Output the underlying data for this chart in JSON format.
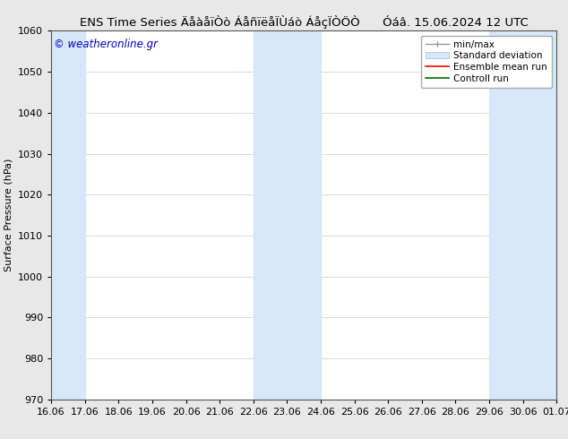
{
  "title_left": "ENS Time Series ÄåàåïÒò ÁåñïëåÏÙáò ÁåçÏÒÖÒ",
  "title_right": "Óáâ. 15.06.2024 12 UTC",
  "ylabel": "Surface Pressure (hPa)",
  "ylim": [
    970,
    1060
  ],
  "yticks": [
    970,
    980,
    990,
    1000,
    1010,
    1020,
    1030,
    1040,
    1050,
    1060
  ],
  "xtick_labels": [
    "16.06",
    "17.06",
    "18.06",
    "19.06",
    "20.06",
    "21.06",
    "22.06",
    "23.06",
    "24.06",
    "25.06",
    "26.06",
    "27.06",
    "28.06",
    "29.06",
    "30.06",
    "01.07"
  ],
  "xtick_positions": [
    0,
    1,
    2,
    3,
    4,
    5,
    6,
    7,
    8,
    9,
    10,
    11,
    12,
    13,
    14,
    15
  ],
  "shaded_bands": [
    {
      "x_start": 0,
      "x_end": 1,
      "color": "#d6e8f7"
    },
    {
      "x_start": 6,
      "x_end": 8,
      "color": "#d6e8f7"
    },
    {
      "x_start": 13,
      "x_end": 15,
      "color": "#d6e8f7"
    }
  ],
  "watermark": "© weatheronline.gr",
  "watermark_color": "#0000cc",
  "bg_color": "#e8e8e8",
  "plot_bg_color": "#ffffff",
  "border_color": "#555555",
  "title_color": "#000000",
  "title_fontsize": 9.5,
  "tick_fontsize": 8,
  "ylabel_fontsize": 8,
  "watermark_fontsize": 8.5,
  "legend_fontsize": 7.5
}
